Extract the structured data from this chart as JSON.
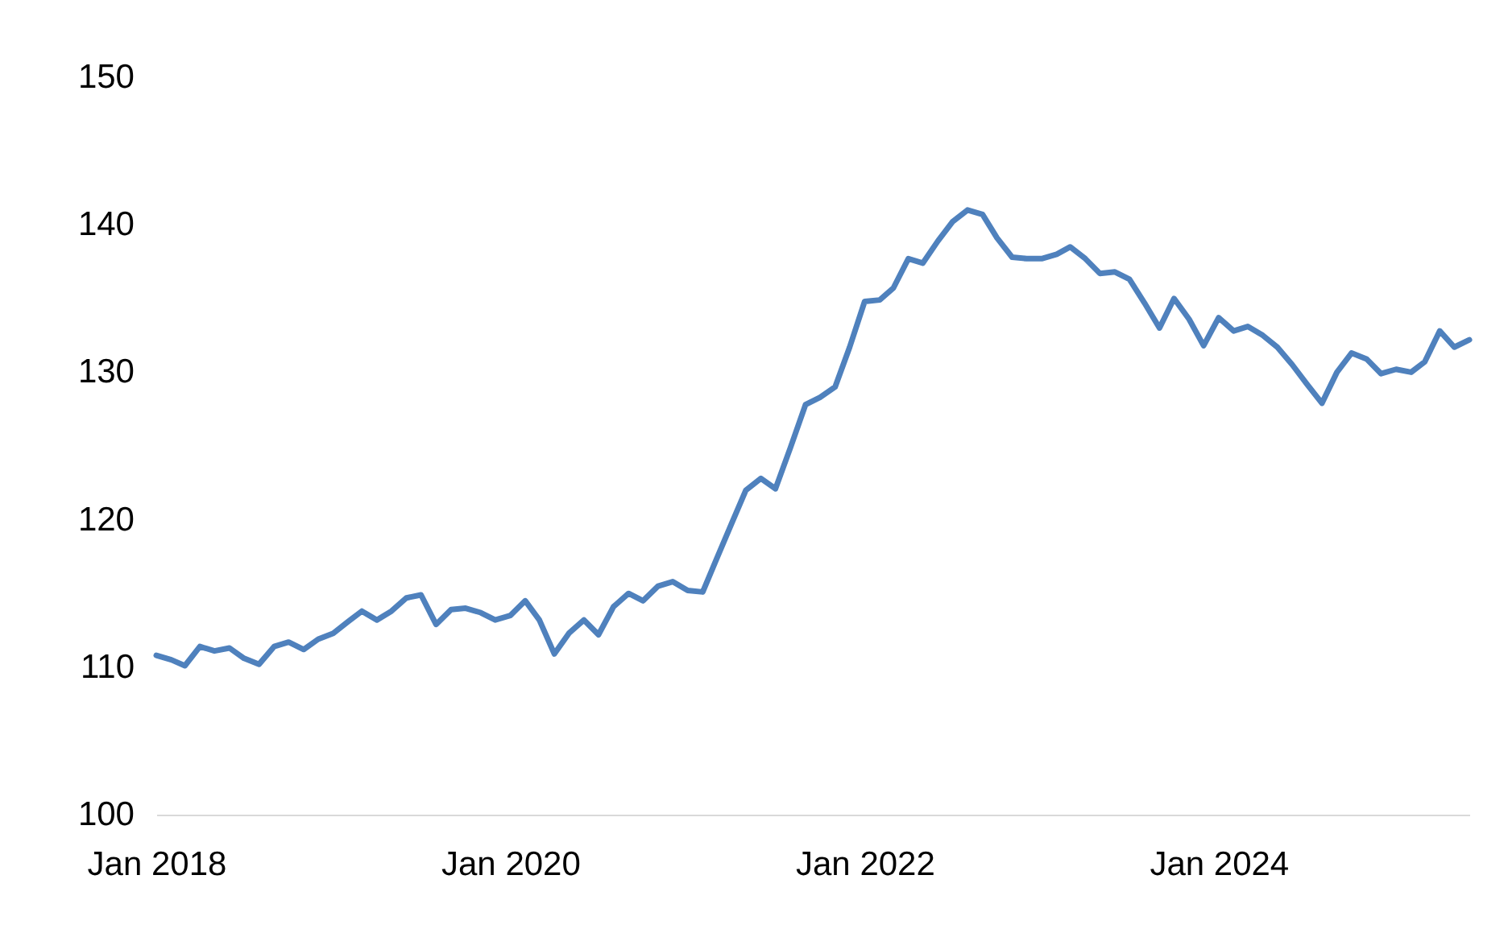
{
  "chart_data": {
    "type": "line",
    "x": [
      "2018-01",
      "2018-02",
      "2018-03",
      "2018-04",
      "2018-05",
      "2018-06",
      "2018-07",
      "2018-08",
      "2018-09",
      "2018-10",
      "2018-11",
      "2018-12",
      "2019-01",
      "2019-02",
      "2019-03",
      "2019-04",
      "2019-05",
      "2019-06",
      "2019-07",
      "2019-08",
      "2019-09",
      "2019-10",
      "2019-11",
      "2019-12",
      "2020-01",
      "2020-02",
      "2020-03",
      "2020-04",
      "2020-05",
      "2020-06",
      "2020-07",
      "2020-08",
      "2020-09",
      "2020-10",
      "2020-11",
      "2020-12",
      "2021-01",
      "2021-02",
      "2021-03",
      "2021-04",
      "2021-05",
      "2021-06",
      "2021-07",
      "2021-08",
      "2021-09",
      "2021-10",
      "2021-11",
      "2021-12",
      "2022-01",
      "2022-02",
      "2022-03",
      "2022-04",
      "2022-05",
      "2022-06",
      "2022-07",
      "2022-08",
      "2022-09",
      "2022-10",
      "2022-11",
      "2022-12",
      "2023-01",
      "2023-02",
      "2023-03",
      "2023-04",
      "2023-05",
      "2023-06",
      "2023-07",
      "2023-08",
      "2023-09",
      "2023-10",
      "2023-11",
      "2023-12",
      "2024-01",
      "2024-02",
      "2024-03",
      "2024-04",
      "2024-05",
      "2024-06",
      "2024-07",
      "2024-08",
      "2024-09",
      "2024-10",
      "2024-11",
      "2024-12",
      "2025-01",
      "2025-02",
      "2025-03",
      "2025-04",
      "2025-05",
      "2025-06"
    ],
    "series": [
      {
        "color": "#4f81bd",
        "values": [
          110.8,
          110.5,
          110.1,
          111.4,
          111.1,
          111.3,
          110.6,
          110.2,
          111.4,
          111.7,
          111.2,
          111.9,
          112.3,
          113.1,
          113.8,
          113.2,
          113.8,
          114.7,
          114.9,
          112.9,
          113.9,
          114.0,
          113.7,
          113.2,
          113.5,
          114.5,
          113.2,
          110.9,
          112.3,
          113.2,
          112.2,
          114.1,
          115.0,
          114.5,
          115.5,
          115.8,
          115.2,
          115.1,
          117.3,
          119.7,
          122.0,
          122.8,
          122.1,
          124.9,
          127.8,
          128.3,
          129.0,
          131.7,
          134.8,
          134.9,
          135.7,
          137.7,
          137.4,
          138.9,
          140.2,
          141.0,
          140.7,
          139.1,
          137.8,
          137.7,
          137.7,
          138.0,
          138.5,
          137.7,
          136.7,
          136.8,
          136.3,
          134.7,
          133.0,
          135.0,
          133.6,
          131.8,
          133.7,
          132.8,
          133.1,
          132.5,
          131.7,
          130.5,
          129.2,
          127.9,
          130.0,
          131.3,
          130.9,
          129.9,
          130.2,
          130.0,
          130.7,
          132.8,
          131.7,
          132.2
        ]
      }
    ],
    "xlim": [
      "2018-01",
      "2025-06"
    ],
    "xticks": [
      {
        "value": "2018-01",
        "label": "Jan 2018"
      },
      {
        "value": "2020-01",
        "label": "Jan 2020"
      },
      {
        "value": "2022-01",
        "label": "Jan 2022"
      },
      {
        "value": "2024-01",
        "label": "Jan 2024"
      }
    ],
    "ylim": [
      100,
      150
    ],
    "yticks": [
      100,
      110,
      120,
      130,
      140,
      150
    ],
    "marker": "none",
    "line_style": "solid",
    "grid": false,
    "legend": false
  }
}
